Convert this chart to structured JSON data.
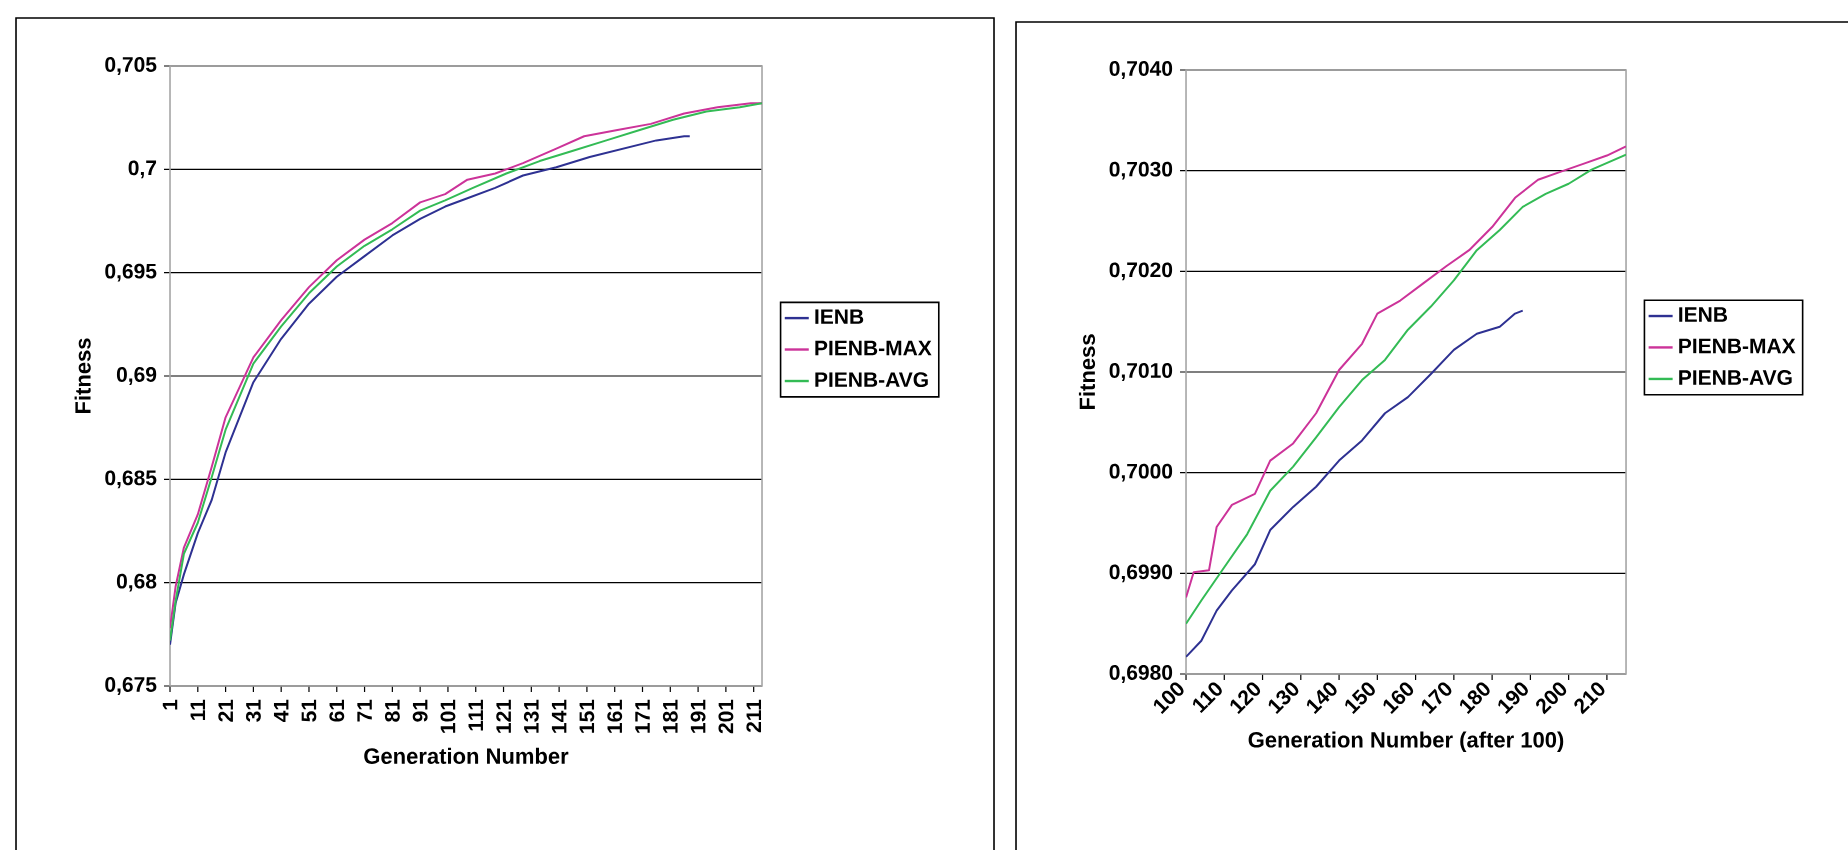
{
  "chart_data": [
    {
      "type": "line",
      "xlabel": "Generation Number",
      "ylabel": "Fitness",
      "grid": "y",
      "legend": "right",
      "xlim": [
        1,
        214
      ],
      "xticks": [
        1,
        11,
        21,
        31,
        41,
        51,
        61,
        71,
        81,
        91,
        101,
        111,
        121,
        131,
        141,
        151,
        161,
        171,
        181,
        191,
        201,
        211
      ],
      "ylim": [
        0.675,
        0.705
      ],
      "yticks": [
        {
          "value": 0.675,
          "label": "0,675"
        },
        {
          "value": 0.68,
          "label": "0,68"
        },
        {
          "value": 0.685,
          "label": "0,685"
        },
        {
          "value": 0.69,
          "label": "0,69"
        },
        {
          "value": 0.695,
          "label": "0,695"
        },
        {
          "value": 0.7,
          "label": "0,7"
        },
        {
          "value": 0.705,
          "label": "0,705"
        }
      ],
      "series": [
        {
          "name": "IENB",
          "color": "#2e3192",
          "x": [
            1,
            3,
            6,
            11,
            16,
            21,
            31,
            41,
            51,
            61,
            71,
            81,
            91,
            100,
            108,
            118,
            128,
            140,
            152,
            164,
            176,
            186,
            188
          ],
          "values": [
            0.677,
            0.679,
            0.6804,
            0.6824,
            0.684,
            0.6863,
            0.6897,
            0.6918,
            0.6935,
            0.6948,
            0.6958,
            0.6968,
            0.6976,
            0.6982,
            0.6986,
            0.6991,
            0.6997,
            0.7001,
            0.7006,
            0.701,
            0.7014,
            0.7016,
            0.7016
          ]
        },
        {
          "name": "PIENB-MAX",
          "color": "#cc3399",
          "x": [
            1,
            3,
            6,
            11,
            16,
            21,
            31,
            41,
            51,
            61,
            71,
            81,
            91,
            100,
            108,
            118,
            128,
            140,
            150,
            162,
            174,
            186,
            198,
            210,
            214
          ],
          "values": [
            0.6778,
            0.6798,
            0.6817,
            0.6833,
            0.6856,
            0.688,
            0.6909,
            0.6927,
            0.6943,
            0.6956,
            0.6966,
            0.6974,
            0.6984,
            0.6988,
            0.6995,
            0.6998,
            0.7003,
            0.701,
            0.7016,
            0.7019,
            0.7022,
            0.7027,
            0.703,
            0.7032,
            0.7032
          ]
        },
        {
          "name": "PIENB-AVG",
          "color": "#33bb55",
          "x": [
            1,
            3,
            6,
            11,
            16,
            21,
            31,
            41,
            51,
            61,
            71,
            81,
            91,
            100,
            110,
            122,
            134,
            146,
            158,
            170,
            182,
            194,
            206,
            214
          ],
          "values": [
            0.6772,
            0.6791,
            0.6814,
            0.6829,
            0.6851,
            0.6874,
            0.6906,
            0.6924,
            0.694,
            0.6953,
            0.6963,
            0.6971,
            0.698,
            0.6985,
            0.6991,
            0.6998,
            0.7004,
            0.7009,
            0.7014,
            0.7019,
            0.7024,
            0.7028,
            0.703,
            0.7032
          ]
        }
      ]
    },
    {
      "type": "line",
      "xlabel": "Generation Number (after 100)",
      "ylabel": "Fitness",
      "grid": "y",
      "legend": "right",
      "xlim": [
        100,
        215
      ],
      "xticks": [
        100,
        110,
        120,
        130,
        140,
        150,
        160,
        170,
        180,
        190,
        200,
        210
      ],
      "ylim": [
        0.698,
        0.704
      ],
      "yticks": [
        {
          "value": 0.698,
          "label": "0,6980"
        },
        {
          "value": 0.699,
          "label": "0,6990"
        },
        {
          "value": 0.7,
          "label": "0,7000"
        },
        {
          "value": 0.701,
          "label": "0,7010"
        },
        {
          "value": 0.702,
          "label": "0,7020"
        },
        {
          "value": 0.703,
          "label": "0,7030"
        },
        {
          "value": 0.704,
          "label": "0,7040"
        }
      ],
      "series": [
        {
          "name": "IENB",
          "color": "#2e3192",
          "x": [
            100,
            104,
            108,
            112,
            118,
            122,
            128,
            134,
            140,
            146,
            152,
            158,
            164,
            170,
            176,
            182,
            186,
            188
          ],
          "values": [
            0.69817,
            0.69833,
            0.69863,
            0.69883,
            0.69909,
            0.69943,
            0.69966,
            0.69986,
            0.70012,
            0.70032,
            0.70059,
            0.70075,
            0.70098,
            0.70122,
            0.70138,
            0.70145,
            0.70158,
            0.70161
          ]
        },
        {
          "name": "PIENB-MAX",
          "color": "#cc3399",
          "x": [
            100,
            102,
            106,
            108,
            112,
            118,
            122,
            128,
            134,
            140,
            146,
            150,
            156,
            162,
            168,
            174,
            180,
            186,
            192,
            198,
            204,
            210,
            215
          ],
          "values": [
            0.69876,
            0.69901,
            0.69903,
            0.69946,
            0.69968,
            0.69979,
            0.70012,
            0.70029,
            0.70059,
            0.70102,
            0.70128,
            0.70158,
            0.70171,
            0.70188,
            0.70205,
            0.70221,
            0.70244,
            0.70273,
            0.70291,
            0.70299,
            0.70307,
            0.70315,
            0.70324
          ]
        },
        {
          "name": "PIENB-AVG",
          "color": "#33bb55",
          "x": [
            100,
            104,
            110,
            116,
            122,
            128,
            134,
            140,
            146,
            152,
            158,
            164,
            170,
            176,
            182,
            188,
            194,
            200,
            206,
            215
          ],
          "values": [
            0.6985,
            0.69873,
            0.69906,
            0.69939,
            0.69982,
            0.70006,
            0.70035,
            0.70065,
            0.70092,
            0.70112,
            0.70142,
            0.70165,
            0.70191,
            0.70221,
            0.70241,
            0.70264,
            0.70277,
            0.70287,
            0.70301,
            0.70316
          ]
        }
      ]
    }
  ]
}
